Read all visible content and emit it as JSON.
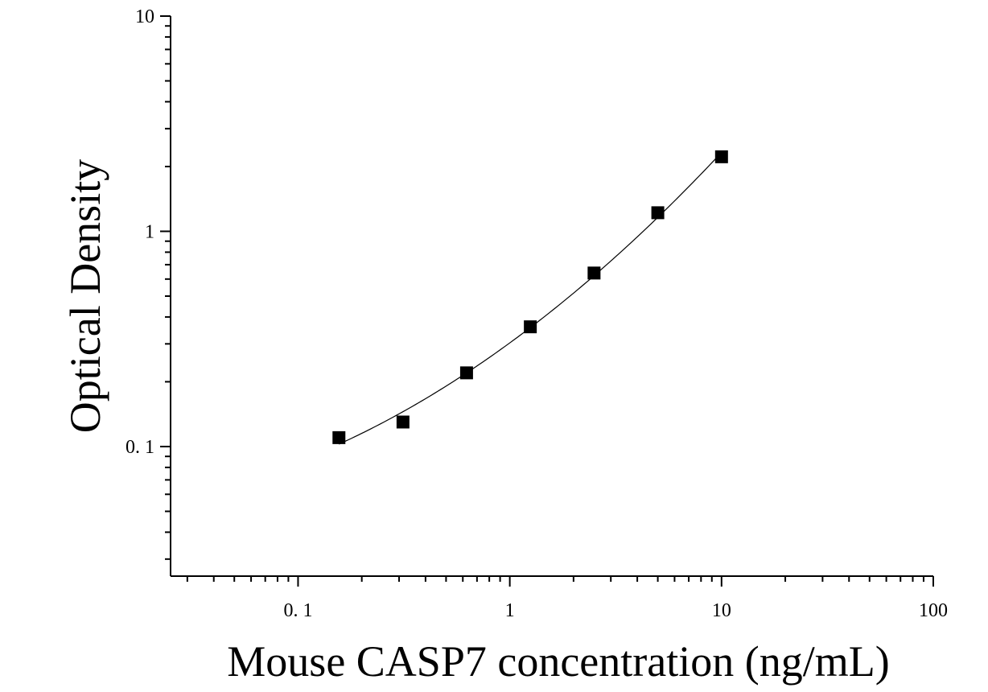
{
  "chart_data": {
    "type": "scatter",
    "title": "",
    "xlabel": "Mouse CASP7 concentration (ng/mL)",
    "ylabel": "Optical Density",
    "xscale": "log",
    "yscale": "log",
    "xlim": [
      0.025,
      100
    ],
    "ylim": [
      0.025,
      10
    ],
    "x_ticks": [
      {
        "value": 0.1,
        "label": "0. 1"
      },
      {
        "value": 1,
        "label": "1"
      },
      {
        "value": 10,
        "label": "10"
      },
      {
        "value": 100,
        "label": "100"
      }
    ],
    "y_ticks": [
      {
        "value": 0.1,
        "label": "0. 1"
      },
      {
        "value": 1,
        "label": "1"
      },
      {
        "value": 10,
        "label": "10"
      }
    ],
    "grid": false,
    "legend": "none",
    "series": [
      {
        "marker": "square",
        "color": "#000000",
        "fit_line": true,
        "points": [
          {
            "x": 0.156,
            "y": 0.11
          },
          {
            "x": 0.313,
            "y": 0.13
          },
          {
            "x": 0.625,
            "y": 0.22
          },
          {
            "x": 1.25,
            "y": 0.36
          },
          {
            "x": 2.5,
            "y": 0.64
          },
          {
            "x": 5,
            "y": 1.22
          },
          {
            "x": 10,
            "y": 2.22
          }
        ]
      }
    ]
  }
}
